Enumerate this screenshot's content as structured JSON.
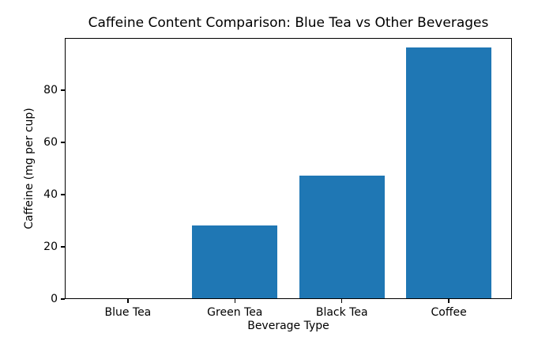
{
  "chart_data": {
    "type": "bar",
    "title": "Caffeine Content Comparison: Blue Tea vs Other Beverages",
    "xlabel": "Beverage Type",
    "ylabel": "Caffeine (mg per cup)",
    "categories": [
      "Blue Tea",
      "Green Tea",
      "Black Tea",
      "Coffee"
    ],
    "values": [
      0,
      28,
      47,
      96
    ],
    "ylim": [
      0,
      100
    ],
    "yticks": [
      0,
      20,
      40,
      60,
      80
    ],
    "xlim": [
      -0.59,
      3.59
    ],
    "bar_width": 0.8,
    "bar_color": "#1f77b4",
    "axis_color": "#000000",
    "background_color": "#ffffff",
    "grid": false,
    "legend": "none"
  }
}
